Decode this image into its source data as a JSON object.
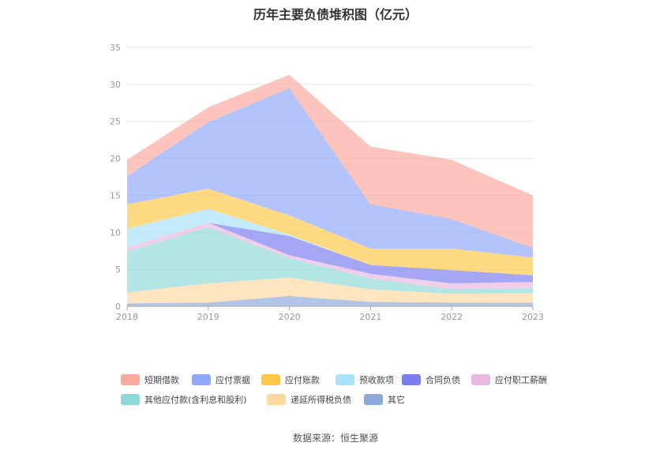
{
  "title": "历年主要负债堆积图（亿元）",
  "source": "数据来源：恒生聚源",
  "chart_data": {
    "type": "area",
    "stacked": true,
    "categories": [
      "2018",
      "2019",
      "2020",
      "2021",
      "2022",
      "2023"
    ],
    "ylim": [
      0,
      35
    ],
    "yticks": [
      "0",
      "5",
      "10",
      "15",
      "20",
      "25",
      "30",
      "35"
    ],
    "grid": true,
    "legend_position": "bottom",
    "series": [
      {
        "name": "其它",
        "color": "#8eaadb",
        "values": [
          0.4,
          0.5,
          1.4,
          0.6,
          0.5,
          0.5
        ]
      },
      {
        "name": "递延所得税负债",
        "color": "#ffd8a0",
        "values": [
          1.5,
          2.6,
          2.5,
          1.7,
          1.2,
          1.3
        ]
      },
      {
        "name": "其他应付款(含利息和股利)",
        "color": "#8fd8d8",
        "values": [
          5.5,
          7.6,
          2.6,
          1.5,
          0.6,
          0.7
        ]
      },
      {
        "name": "应付职工薪酬",
        "color": "#e8b8df",
        "values": [
          0.6,
          0.6,
          0.4,
          0.6,
          0.8,
          0.8
        ]
      },
      {
        "name": "合同负债",
        "color": "#7b7ef0",
        "values": [
          0,
          0,
          2.6,
          1.2,
          1.8,
          0.9
        ]
      },
      {
        "name": "预收款项",
        "color": "#a8e2fb",
        "values": [
          2.5,
          1.9,
          0.2,
          0,
          0,
          0
        ]
      },
      {
        "name": "应付账款",
        "color": "#ffc847",
        "values": [
          3.3,
          2.7,
          2.6,
          2.2,
          2.9,
          2.4
        ]
      },
      {
        "name": "应付票据",
        "color": "#8fa8fb",
        "values": [
          3.8,
          9.0,
          17.2,
          6.0,
          4.0,
          1.3
        ]
      },
      {
        "name": "短期借款",
        "color": "#fba89e",
        "values": [
          2.2,
          2.0,
          1.8,
          7.8,
          8.0,
          7.1
        ]
      }
    ],
    "legend_order": [
      "短期借款",
      "应付票据",
      "应付账款",
      "预收款项",
      "合同负债",
      "应付职工薪酬",
      "其他应付款(含利息和股利)",
      "递延所得税负债",
      "其它"
    ]
  }
}
